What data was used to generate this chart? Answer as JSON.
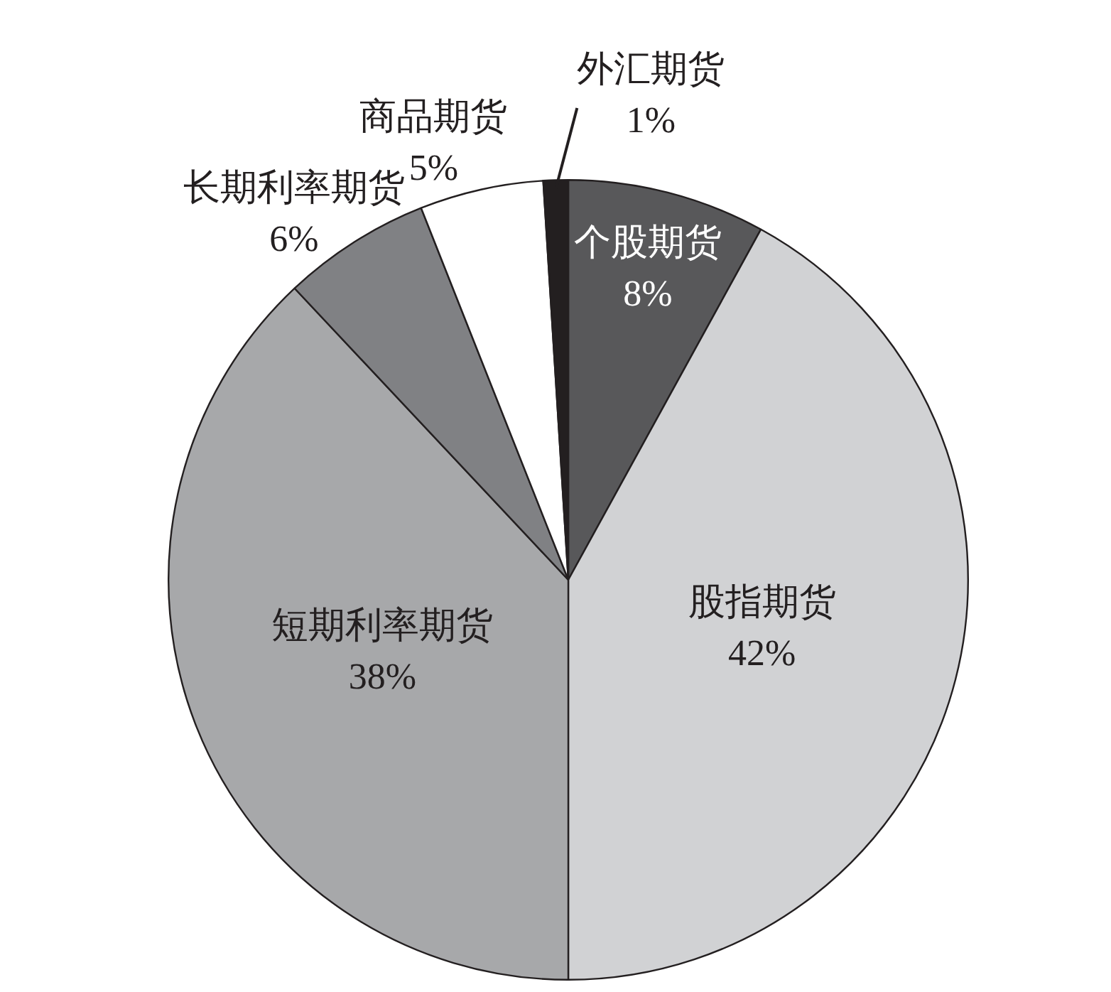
{
  "chart_data": {
    "type": "pie",
    "categories": [
      "个股期货",
      "股指期货",
      "短期利率期货",
      "长期利率期货",
      "商品期货",
      "外汇期货"
    ],
    "values": [
      8,
      42,
      38,
      6,
      5,
      1
    ],
    "colors": [
      "#58585a",
      "#d1d2d4",
      "#a7a8aa",
      "#808184",
      "#ffffff",
      "#231f20"
    ],
    "value_labels": [
      "8%",
      "42%",
      "38%",
      "6%",
      "5%",
      "1%"
    ]
  }
}
